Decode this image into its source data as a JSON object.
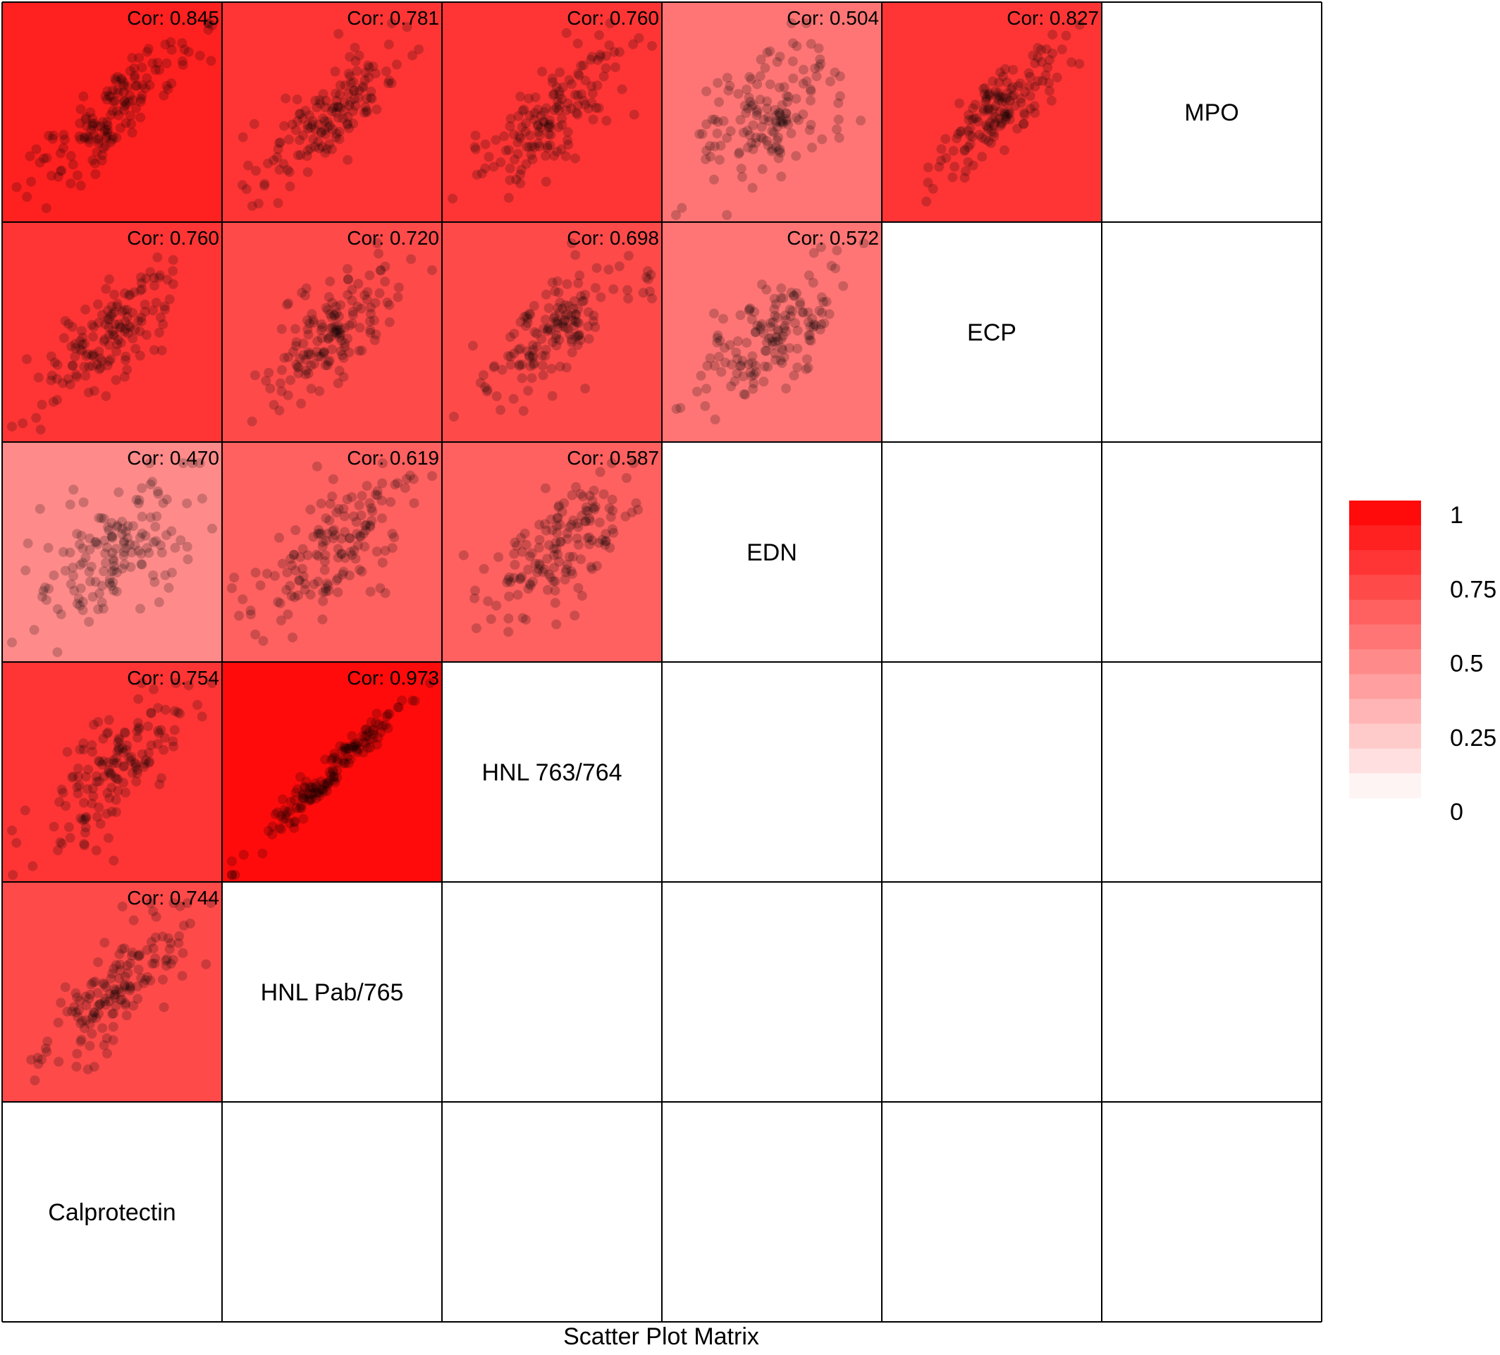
{
  "chart_data": {
    "type": "scatter",
    "title": "",
    "xlabel": "Scatter Plot Matrix",
    "ylabel": "",
    "variables": [
      "Calprotectin",
      "HNL Pab/765",
      "HNL 763/764",
      "EDN",
      "ECP",
      "MPO"
    ],
    "correlation_label_prefix": "Cor: ",
    "correlations": [
      {
        "row": "MPO",
        "col": "Calprotectin",
        "value": "0.845"
      },
      {
        "row": "MPO",
        "col": "HNL Pab/765",
        "value": "0.781"
      },
      {
        "row": "MPO",
        "col": "HNL 763/764",
        "value": "0.760"
      },
      {
        "row": "MPO",
        "col": "EDN",
        "value": "0.504"
      },
      {
        "row": "MPO",
        "col": "ECP",
        "value": "0.827"
      },
      {
        "row": "ECP",
        "col": "Calprotectin",
        "value": "0.760"
      },
      {
        "row": "ECP",
        "col": "HNL Pab/765",
        "value": "0.720"
      },
      {
        "row": "ECP",
        "col": "HNL 763/764",
        "value": "0.698"
      },
      {
        "row": "ECP",
        "col": "EDN",
        "value": "0.572"
      },
      {
        "row": "EDN",
        "col": "Calprotectin",
        "value": "0.470"
      },
      {
        "row": "EDN",
        "col": "HNL Pab/765",
        "value": "0.619"
      },
      {
        "row": "EDN",
        "col": "HNL 763/764",
        "value": "0.587"
      },
      {
        "row": "HNL 763/764",
        "col": "Calprotectin",
        "value": "0.754"
      },
      {
        "row": "HNL 763/764",
        "col": "HNL Pab/765",
        "value": "0.973"
      },
      {
        "row": "HNL Pab/765",
        "col": "Calprotectin",
        "value": "0.744"
      }
    ],
    "color_scale": {
      "low": "#ffffff",
      "high": "#ff0000",
      "range": [
        0,
        1
      ],
      "steps": 12,
      "ticks": [
        "1",
        "0.75",
        "0.5",
        "0.25",
        "0"
      ]
    },
    "point_color": "#000000",
    "point_opacity": 0.2,
    "points_per_panel": 150,
    "legend_position": "right",
    "grid": false
  }
}
